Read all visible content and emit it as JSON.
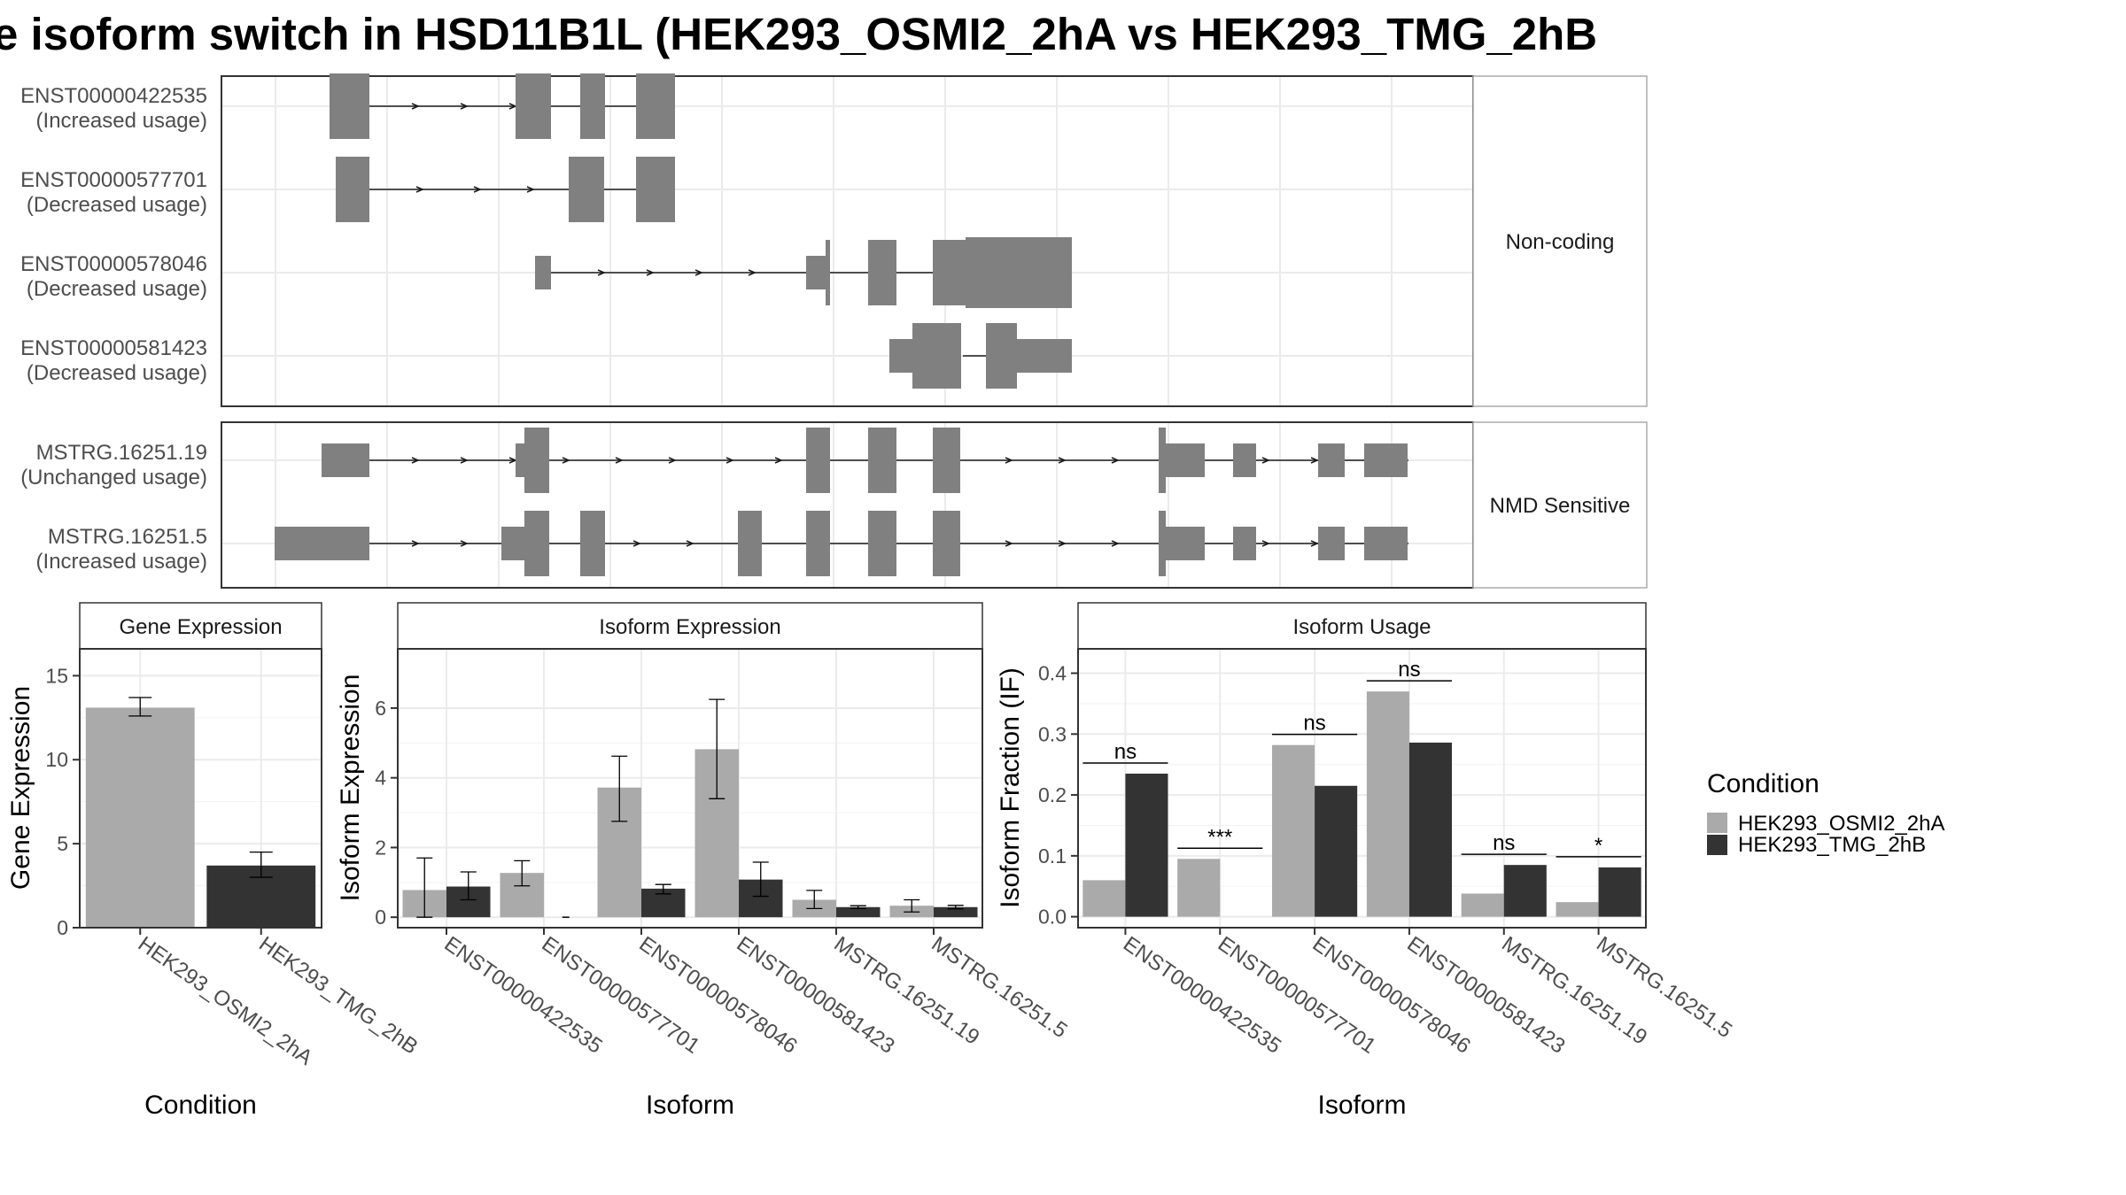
{
  "title": "e isoform switch in HSD11B1L (HEK293_OSMI2_2hA vs HEK293_TMG_2hB",
  "colors": {
    "condition_a": "#aaaaaa",
    "condition_b": "#333333",
    "exon": "#808080",
    "panel_border": "#333333",
    "strip_border": "#aaaaaa",
    "grid": "#ebebeb"
  },
  "chart_data": [
    {
      "type": "gene-structure",
      "panels": [
        {
          "strip_label": "Non-coding",
          "isoforms": [
            {
              "id": "ENST00000422535",
              "usage": "(Increased usage)"
            },
            {
              "id": "ENST00000577701",
              "usage": "(Decreased usage)"
            },
            {
              "id": "ENST00000578046",
              "usage": "(Decreased usage)"
            },
            {
              "id": "ENST00000581423",
              "usage": "(Decreased usage)"
            }
          ]
        },
        {
          "strip_label": "NMD Sensitive",
          "isoforms": [
            {
              "id": "MSTRG.16251.19",
              "usage": "(Unchanged usage)"
            },
            {
              "id": "MSTRG.16251.5",
              "usage": "(Increased usage)"
            }
          ]
        }
      ]
    },
    {
      "type": "bar",
      "strip_label": "Gene Expression",
      "xlabel": "Condition",
      "ylabel": "Gene Expression",
      "ylim": [
        0,
        16.6
      ],
      "yticks": [
        0,
        5,
        10,
        15
      ],
      "categories": [
        "HEK293_OSMI2_2hA",
        "HEK293_TMG_2hB"
      ],
      "values": [
        13.1,
        3.7
      ],
      "errors": [
        [
          12.6,
          13.7
        ],
        [
          3.0,
          4.5
        ]
      ]
    },
    {
      "type": "bar",
      "strip_label": "Isoform Expression",
      "xlabel": "Isoform",
      "ylabel": "Isoform Expression",
      "ylim": [
        -0.3,
        7.7
      ],
      "yticks": [
        0,
        2,
        4,
        6
      ],
      "categories": [
        "ENST00000422535",
        "ENST00000577701",
        "ENST00000578046",
        "ENST00000581423",
        "MSTRG.16251.19",
        "MSTRG.16251.5"
      ],
      "series": [
        {
          "values": [
            0.78,
            1.27,
            3.72,
            4.82,
            0.5,
            0.33
          ],
          "errors": [
            [
              0.0,
              1.7
            ],
            [
              0.9,
              1.62
            ],
            [
              2.75,
              4.62
            ],
            [
              3.4,
              6.25
            ],
            [
              0.25,
              0.77
            ],
            [
              0.15,
              0.5
            ]
          ]
        },
        {
          "values": [
            0.88,
            0.0,
            0.82,
            1.08,
            0.29,
            0.29
          ],
          "errors": [
            [
              0.5,
              1.3
            ],
            [
              0.0,
              0.0
            ],
            [
              0.67,
              0.94
            ],
            [
              0.6,
              1.58
            ],
            [
              0.25,
              0.33
            ],
            [
              0.24,
              0.34
            ]
          ]
        }
      ]
    },
    {
      "type": "bar",
      "strip_label": "Isoform Usage",
      "xlabel": "Isoform",
      "ylabel": "Isoform Fraction (IF)",
      "ylim": [
        -0.018,
        0.44
      ],
      "yticks": [
        "0.0",
        "0.1",
        "0.2",
        "0.3",
        "0.4"
      ],
      "categories": [
        "ENST00000422535",
        "ENST00000577701",
        "ENST00000578046",
        "ENST00000581423",
        "MSTRG.16251.19",
        "MSTRG.16251.5"
      ],
      "series": [
        {
          "values": [
            0.06,
            0.095,
            0.282,
            0.37,
            0.038,
            0.024
          ]
        },
        {
          "values": [
            0.235,
            0.0,
            0.215,
            0.286,
            0.085,
            0.081
          ]
        }
      ],
      "significance": [
        "ns",
        "***",
        "ns",
        "ns",
        "ns",
        "*"
      ]
    }
  ],
  "legend": {
    "title": "Condition",
    "entries": [
      "HEK293_OSMI2_2hA",
      "HEK293_TMG_2hB"
    ]
  }
}
